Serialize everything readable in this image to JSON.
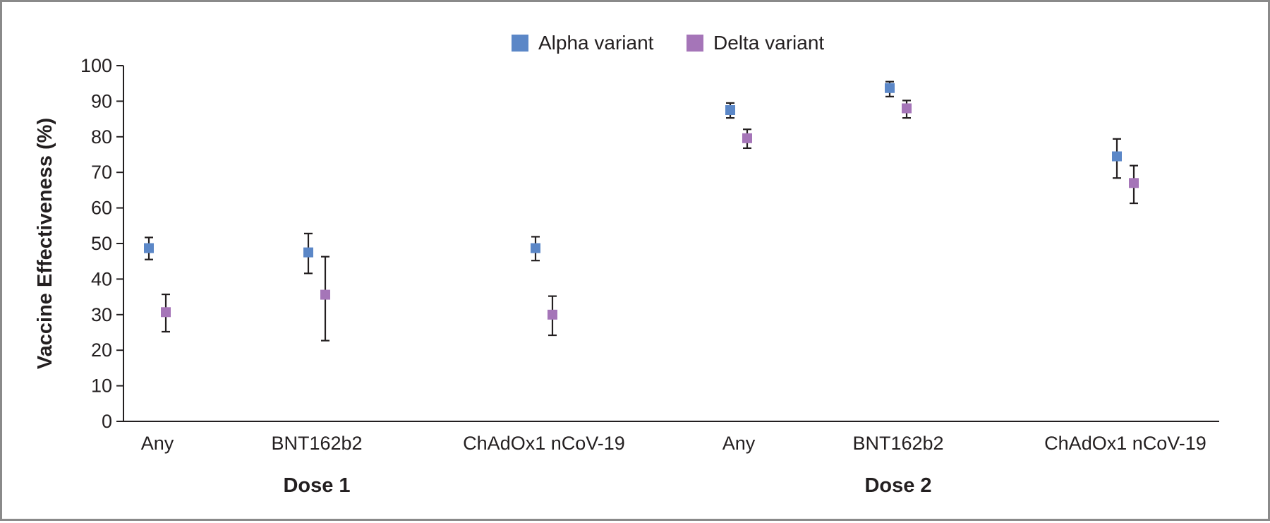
{
  "chart_data": {
    "type": "scatter",
    "legend_position": "top-center",
    "ylabel": "Vaccine Effectiveness (%)",
    "ylim": [
      0,
      100
    ],
    "yticks": [
      0,
      10,
      20,
      30,
      40,
      50,
      60,
      70,
      80,
      90,
      100
    ],
    "groups": [
      {
        "label": "Dose 1",
        "categories": [
          "Any",
          "BNT162b2",
          "ChAdOx1 nCoV-19"
        ]
      },
      {
        "label": "Dose 2",
        "categories": [
          "Any",
          "BNT162b2",
          "ChAdOx1 nCoV-19"
        ]
      }
    ],
    "series": [
      {
        "name": "Alpha variant",
        "color": "#5b87c7",
        "values": [
          48.7,
          47.5,
          48.7,
          87.5,
          93.7,
          74.5
        ],
        "ci_low": [
          45.5,
          41.6,
          45.2,
          85.3,
          91.3,
          68.4
        ],
        "ci_high": [
          51.7,
          52.8,
          51.9,
          89.5,
          95.5,
          79.4
        ]
      },
      {
        "name": "Delta variant",
        "color": "#a575b8",
        "values": [
          30.7,
          35.6,
          30.0,
          79.6,
          88.0,
          67.0
        ],
        "ci_low": [
          25.2,
          22.7,
          24.2,
          76.8,
          85.3,
          61.3
        ],
        "ci_high": [
          35.7,
          46.3,
          35.2,
          82.1,
          90.2,
          71.9
        ]
      }
    ]
  }
}
